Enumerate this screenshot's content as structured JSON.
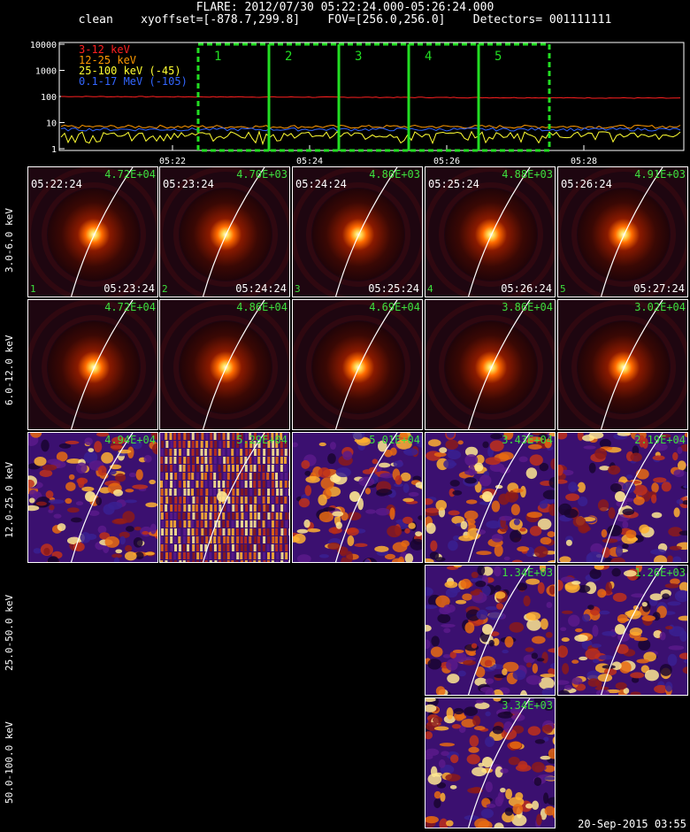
{
  "header": {
    "title": "FLARE: 2012/07/30 05:22:24.000-05:26:24.000",
    "subtitle": "clean    xyoffset=[-878.7,299.8]    FOV=[256.0,256.0]    Detectors= 001111111"
  },
  "lightcurve": {
    "y_ticks": [
      "10000",
      "1000",
      "100",
      "10",
      "1"
    ],
    "x_ticks": [
      "05:22",
      "05:24",
      "05:26",
      "05:28"
    ],
    "legend": [
      {
        "label": "3-12 keV",
        "color": "#ff2020"
      },
      {
        "label": "12-25 keV",
        "color": "#ff9900"
      },
      {
        "label": "25-100 keV (-45)",
        "color": "#ffff33"
      },
      {
        "label": "0.1-17 MeV (-105)",
        "color": "#3366ff"
      }
    ],
    "intervals": [
      "1",
      "2",
      "3",
      "4",
      "5"
    ],
    "interval_color": "#22dd22"
  },
  "rows": [
    {
      "label": "3.0-6.0 keV",
      "panels": [
        {
          "peak": "4.72E+04",
          "start": "05:22:24",
          "end": "05:23:24",
          "index": "1"
        },
        {
          "peak": "4.70E+03",
          "start": "05:23:24",
          "end": "05:24:24",
          "index": "2"
        },
        {
          "peak": "4.80E+03",
          "start": "05:24:24",
          "end": "05:25:24",
          "index": "3"
        },
        {
          "peak": "4.88E+03",
          "start": "05:25:24",
          "end": "05:26:24",
          "index": "4"
        },
        {
          "peak": "4.91E+03",
          "start": "05:26:24",
          "end": "05:27:24",
          "index": "5"
        }
      ]
    },
    {
      "label": "6.0-12.0 keV",
      "panels": [
        {
          "peak": "4.72E+04"
        },
        {
          "peak": "4.86E+04"
        },
        {
          "peak": "4.69E+04"
        },
        {
          "peak": "3.86E+04"
        },
        {
          "peak": "3.02E+04"
        }
      ]
    },
    {
      "label": "12.0-25.0 keV",
      "panels": [
        {
          "peak": "4.94E+04"
        },
        {
          "peak": "5.29E+04"
        },
        {
          "peak": "5.01E+04"
        },
        {
          "peak": "3.43E+04"
        },
        {
          "peak": "2.19E+04"
        }
      ]
    },
    {
      "label": "25.0-50.0 keV",
      "panels": [
        {
          "peak": "1.34E+03"
        },
        {
          "peak": "1.26E+03"
        }
      ]
    },
    {
      "label": "50.0-100.0 keV",
      "panels": [
        {
          "peak": "3.34E+03"
        }
      ]
    }
  ],
  "footer": {
    "timestamp": "20-Sep-2015 03:55"
  }
}
